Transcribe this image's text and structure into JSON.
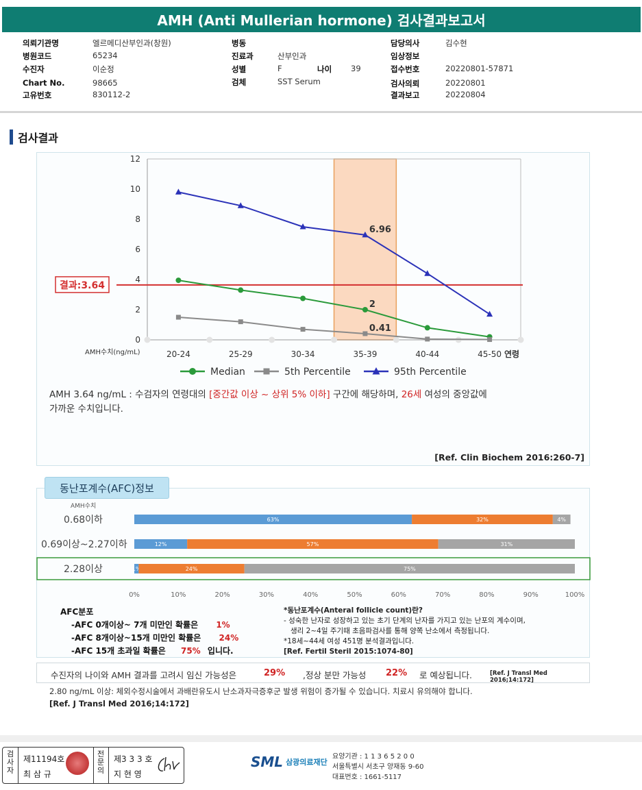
{
  "title": "AMH (Anti Mullerian hormone) 검사결과보고서",
  "info": {
    "col1": [
      {
        "label": "의뢰기관명",
        "value": "엘르메디산부인과(창원)"
      },
      {
        "label": "병원코드",
        "value": "65234"
      },
      {
        "label": "수진자",
        "value": "이순정"
      },
      {
        "label": "Chart No.",
        "value": "98665"
      },
      {
        "label": "고유번호",
        "value": "830112-2"
      }
    ],
    "col2": [
      {
        "label": "병동",
        "value": ""
      },
      {
        "label": "진료과",
        "value": "산부인과"
      },
      {
        "label": "성별",
        "value": "F"
      },
      {
        "label": "검체",
        "value": "SST Serum"
      }
    ],
    "age_label": "나이",
    "age_value": "39",
    "col3": [
      {
        "label": "담당의사",
        "value": "김수현"
      },
      {
        "label": "임상정보",
        "value": ""
      },
      {
        "label": "접수번호",
        "value": "20220801-57871"
      },
      {
        "label": "검사의뢰",
        "value": "20220801"
      },
      {
        "label": "결과보고",
        "value": "20220804"
      }
    ]
  },
  "section_title": "검사결과",
  "chart_data": {
    "type": "line",
    "categories": [
      "20-24",
      "25-29",
      "30-34",
      "35-39",
      "40-44",
      "45-50"
    ],
    "x_axis_label": "연령",
    "y_axis_label": "AMH수치(ng/mL)",
    "ylim": [
      0,
      12
    ],
    "y_ticks": [
      "0",
      "2",
      "4",
      "6",
      "8",
      "10",
      "12"
    ],
    "grid": true,
    "highlight_category": "35-39",
    "result_line": {
      "label": "결과:3.64",
      "value": 3.64,
      "color": "#d32f2f"
    },
    "series": [
      {
        "name": "Median",
        "values": [
          3.95,
          3.3,
          2.75,
          2.0,
          0.8,
          0.2
        ],
        "color": "#2a9a3a",
        "marker": "circle"
      },
      {
        "name": "5th Percentile",
        "values": [
          1.5,
          1.2,
          0.7,
          0.41,
          0.05,
          0.02
        ],
        "color": "#8a8a8a",
        "marker": "square"
      },
      {
        "name": "95th Percentile",
        "values": [
          9.8,
          8.9,
          7.5,
          6.96,
          4.4,
          1.7
        ],
        "color": "#2b32b8",
        "marker": "triangle"
      }
    ],
    "data_labels": [
      {
        "series": 2,
        "index": 3,
        "text": "6.96"
      },
      {
        "series": 0,
        "index": 3,
        "text": "2"
      },
      {
        "series": 1,
        "index": 3,
        "text": "0.41"
      }
    ],
    "legend_position": "bottom"
  },
  "description": {
    "part1": "AMH  3.64 ng/mL : 수검자의 연령대의 ",
    "highlight1": "[중간값 이상 ~ 상위 5% 이하]",
    "part2": " 구간에 해당하며, ",
    "highlight2": "26세",
    "part3": " 여성의 중앙값에",
    "line2": "가까운 수치입니다."
  },
  "ref1": "[Ref. Clin Biochem 2016:260-7]",
  "afc": {
    "badge": "동난포계수(AFC)정보",
    "axis_caption": "AMH수치",
    "rows": [
      {
        "label": "0.68이하",
        "values": [
          63,
          32,
          4
        ],
        "texts": [
          "63%",
          "32%",
          "4%"
        ]
      },
      {
        "label": "0.69이상~2.27이하",
        "values": [
          12,
          57,
          31
        ],
        "texts": [
          "12%",
          "57%",
          "31%"
        ]
      },
      {
        "label": "2.28이상",
        "values": [
          1,
          24,
          75
        ],
        "texts": [
          "1%",
          "24%",
          "75%"
        ],
        "highlighted": true
      }
    ],
    "colors": [
      "#5b9bd5",
      "#ed7d31",
      "#a5a5a5"
    ],
    "x_ticks": [
      "0%",
      "10%",
      "20%",
      "30%",
      "40%",
      "50%",
      "60%",
      "70%",
      "80%",
      "90%",
      "100%"
    ],
    "dist_title": "AFC분포",
    "dist": [
      {
        "text": "-AFC  0개이상~ 7개 미만인 확률은",
        "pct": "1%",
        "suffix": ""
      },
      {
        "text": "-AFC  8개이상~15개 미만인 확률은",
        "pct": "24%",
        "suffix": ""
      },
      {
        "text": "-AFC  15개 초과일 확률은",
        "pct": "75%",
        "suffix": "입니다."
      }
    ],
    "info_title": "*동난포계수(Anteral follicle count)란?",
    "info_line1": "- 성숙한 난자로 성장하고 있는 초기 단계의 난자를 가지고 있는 난포의 계수이며,",
    "info_line2": "생리 2~4일 주기때 초음파검사를 통해 양쪽 난소에서 측정됩니다.",
    "info_line3": "*18세~44세 여성 451명 분석결과입니다.",
    "info_ref": "[Ref. Fertil Steril 2015:1074-80]"
  },
  "probability": {
    "part1": "수진자의  나이와 AMH 결과를 고려시 임신 가능성은",
    "pct1": "29%",
    "part2": ",정상 분만 가능성",
    "pct2": "22%",
    "part3": "로 예상됩니다.",
    "ref": "[Ref. J Transl Med 2016;14:172]"
  },
  "note": {
    "text": "2.80 ng/mL  이상: 체외수정시술에서 과배란유도시 난소과자극증후군 발생 위험이 증가될 수 있습니다. 치료시 유의해야 합니다.",
    "ref": "[Ref. J Transl Med 2016;14:172]"
  },
  "footer": {
    "signer1_role": "검사자",
    "signer1_no": "제11194호",
    "signer1_name": "최 삼 규",
    "signer2_role": "전문의",
    "signer2_no": "제3 3 3 호",
    "signer2_name": "지 현 영",
    "logo": "SML",
    "org_name": "삼광의료재단",
    "org_line1": "요양기관 : 1 1 3 6 5 2 0 0",
    "org_line2": "서울특별시 서초구 양재동 9-60",
    "org_line3": "대표번호 : 1661-5117"
  }
}
